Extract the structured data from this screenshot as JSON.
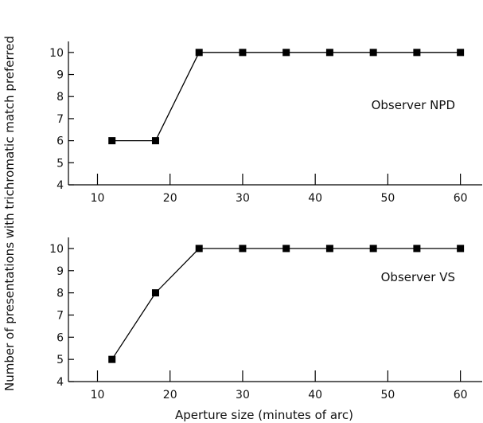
{
  "chart_data": [
    {
      "type": "line",
      "annotation": "Observer NPD",
      "x": [
        12,
        18,
        24,
        30,
        36,
        42,
        48,
        54,
        60
      ],
      "values": [
        6,
        6,
        10,
        10,
        10,
        10,
        10,
        10,
        10
      ],
      "xlim": [
        6,
        63
      ],
      "ylim": [
        4,
        10.5
      ],
      "xticks": [
        10,
        20,
        30,
        40,
        50,
        60
      ],
      "yticks": [
        4,
        5,
        6,
        7,
        8,
        9,
        10
      ],
      "marker": "square",
      "grid": false
    },
    {
      "type": "line",
      "annotation": "Observer VS",
      "x": [
        12,
        18,
        24,
        30,
        36,
        42,
        48,
        54,
        60
      ],
      "values": [
        5,
        8,
        10,
        10,
        10,
        10,
        10,
        10,
        10
      ],
      "xlim": [
        6,
        63
      ],
      "ylim": [
        4,
        10.5
      ],
      "xticks": [
        10,
        20,
        30,
        40,
        50,
        60
      ],
      "yticks": [
        4,
        5,
        6,
        7,
        8,
        9,
        10
      ],
      "marker": "square",
      "grid": false
    }
  ],
  "labels": {
    "xlabel": "Aperture size (minutes of arc)",
    "ylabel": "Number of presentations with trichromatic match preferred"
  }
}
